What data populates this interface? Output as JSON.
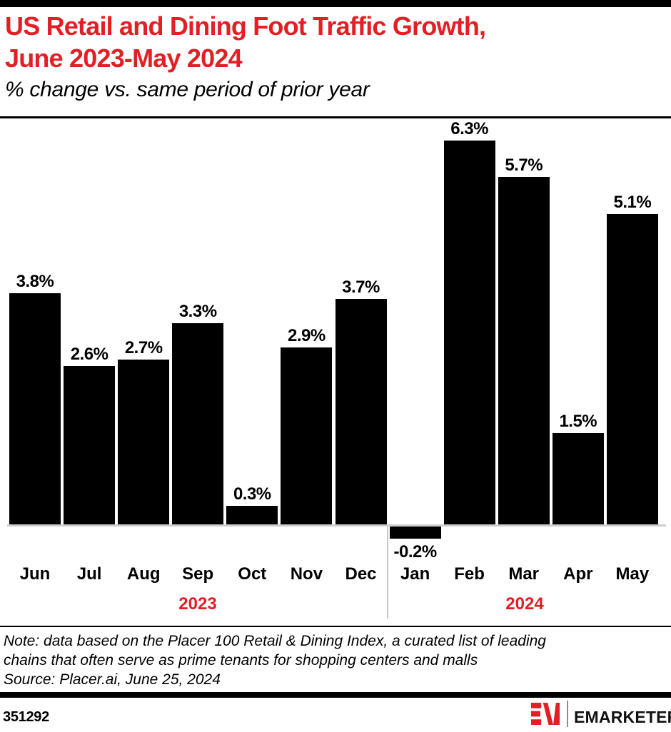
{
  "header": {
    "title_line1": "US Retail and Dining Foot Traffic Growth,",
    "title_line2": "June 2023-May 2024",
    "subtitle": "% change vs. same period of prior year",
    "accent_color": "#E31E24"
  },
  "chart_data": {
    "type": "bar",
    "title": "US Retail and Dining Foot Traffic Growth, June 2023-May 2024",
    "subtitle": "% change vs. same period of prior year",
    "unit": "% change vs. same period of prior year",
    "categories": [
      "Jun",
      "Jul",
      "Aug",
      "Sep",
      "Oct",
      "Nov",
      "Dec",
      "Jan",
      "Feb",
      "Mar",
      "Apr",
      "May"
    ],
    "values": [
      3.8,
      2.6,
      2.7,
      3.3,
      0.3,
      2.9,
      3.7,
      -0.2,
      6.3,
      5.7,
      1.5,
      5.1
    ],
    "data_labels": [
      "3.8%",
      "2.6%",
      "2.7%",
      "3.3%",
      "0.3%",
      "2.9%",
      "3.7%",
      "-0.2%",
      "6.3%",
      "5.7%",
      "1.5%",
      "5.1%"
    ],
    "year_groups": [
      {
        "label": "2023",
        "start": "Jun",
        "end": "Dec"
      },
      {
        "label": "2024",
        "start": "Jan",
        "end": "May"
      }
    ],
    "bar_color": "#000000",
    "axis_color": "#cfcfcf",
    "grid": false,
    "legend": false,
    "ylim": [
      -0.5,
      7
    ]
  },
  "note": {
    "lines": [
      "Note: data based on the Placer 100 Retail & Dining Index, a curated list of leading",
      "chains that often serve as prime tenants for shopping centers and malls",
      "Source: Placer.ai, June 25, 2024"
    ]
  },
  "footer": {
    "chart_id": "351292",
    "brand": "EMARKETER",
    "logo_icon": "emarketer-em-monogram",
    "brand_red": "#E31E24"
  }
}
